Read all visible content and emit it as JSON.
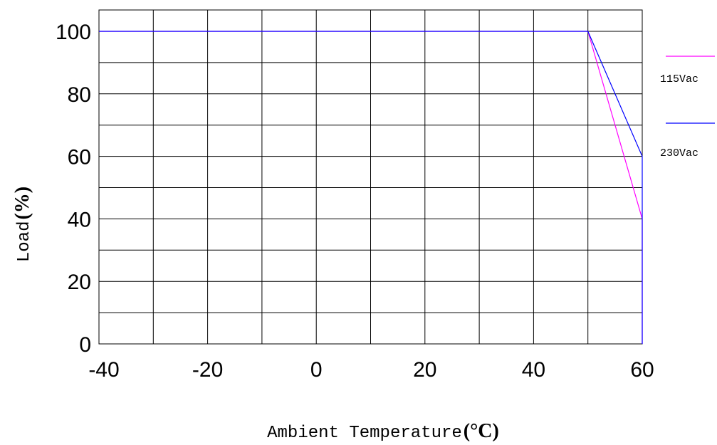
{
  "chart_data": {
    "type": "line",
    "xlabel": "Ambient Temperature",
    "xlabel_unit": "(°C)",
    "ylabel": "Load",
    "ylabel_unit": "(%)",
    "xlim": [
      -40,
      60
    ],
    "ylim": [
      0,
      100
    ],
    "x_ticks": [
      -40,
      -20,
      0,
      20,
      40,
      60
    ],
    "y_ticks": [
      0,
      20,
      40,
      60,
      80,
      100
    ],
    "grid": true,
    "legend_position": "right",
    "series": [
      {
        "name": "115Vac",
        "color": "#ff00ff",
        "points": [
          [
            -40,
            100
          ],
          [
            50,
            100
          ],
          [
            60,
            40
          ],
          [
            60,
            0
          ]
        ]
      },
      {
        "name": "230Vac",
        "color": "#0000ff",
        "points": [
          [
            -40,
            100
          ],
          [
            50,
            100
          ],
          [
            60,
            60
          ],
          [
            60,
            0
          ]
        ]
      }
    ]
  }
}
